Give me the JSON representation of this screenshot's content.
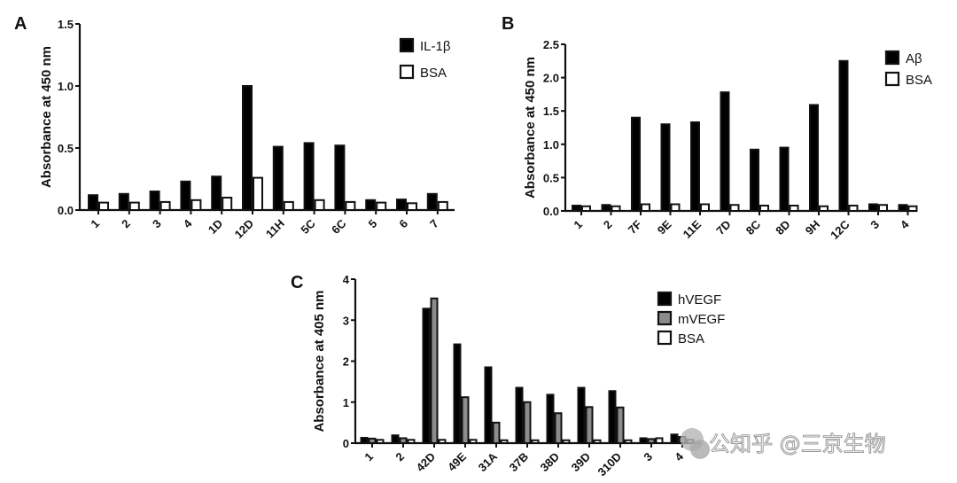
{
  "chart_data": [
    {
      "panel": "A",
      "type": "bar",
      "title": "",
      "xlabel": "",
      "ylabel": "Absorbance at 450 nm",
      "ylim": [
        0,
        1.5
      ],
      "yticks": [
        "0.0",
        "0.5",
        "1.0",
        "1.5"
      ],
      "ytick_values": [
        0,
        0.5,
        1.0,
        1.5
      ],
      "categories": [
        "1",
        "2",
        "3",
        "4",
        "1D",
        "12D",
        "11H",
        "5C",
        "6C",
        "5",
        "6",
        "7"
      ],
      "legend_position": "top-right",
      "series": [
        {
          "name": "IL-1β",
          "fill": "#000000",
          "values": [
            0.12,
            0.13,
            0.15,
            0.23,
            0.27,
            1.0,
            0.51,
            0.54,
            0.52,
            0.08,
            0.085,
            0.13
          ]
        },
        {
          "name": "BSA",
          "fill": "#ffffff",
          "values": [
            0.06,
            0.06,
            0.065,
            0.08,
            0.1,
            0.26,
            0.065,
            0.08,
            0.065,
            0.06,
            0.055,
            0.065
          ]
        }
      ]
    },
    {
      "panel": "B",
      "type": "bar",
      "title": "",
      "xlabel": "",
      "ylabel": "Absorbance at 450 nm",
      "ylim": [
        0,
        2.5
      ],
      "yticks": [
        "0.0",
        "0.5",
        "1.0",
        "1.5",
        "2.0",
        "2.5"
      ],
      "ytick_values": [
        0,
        0.5,
        1.0,
        1.5,
        2.0,
        2.5
      ],
      "categories": [
        "1",
        "2",
        "7F",
        "9E",
        "11E",
        "7D",
        "8C",
        "8D",
        "9H",
        "12C",
        "3",
        "4"
      ],
      "legend_position": "top-right",
      "series": [
        {
          "name": "Aβ",
          "fill": "#000000",
          "values": [
            0.08,
            0.09,
            1.4,
            1.3,
            1.33,
            1.78,
            0.92,
            0.95,
            1.59,
            2.25,
            0.1,
            0.09
          ]
        },
        {
          "name": "BSA",
          "fill": "#ffffff",
          "values": [
            0.07,
            0.07,
            0.1,
            0.1,
            0.1,
            0.09,
            0.08,
            0.08,
            0.07,
            0.08,
            0.09,
            0.07
          ]
        }
      ]
    },
    {
      "panel": "C",
      "type": "bar",
      "title": "",
      "xlabel": "",
      "ylabel": "Absorbance at 405 nm",
      "ylim": [
        0,
        4
      ],
      "yticks": [
        "0",
        "1",
        "2",
        "3",
        "4"
      ],
      "ytick_values": [
        0,
        1,
        2,
        3,
        4
      ],
      "categories": [
        "1",
        "2",
        "42D",
        "49E",
        "31A",
        "37B",
        "38D",
        "39D",
        "310D",
        "3",
        "4"
      ],
      "legend_position": "right",
      "series": [
        {
          "name": "hVEGF",
          "fill": "#000000",
          "values": [
            0.13,
            0.19,
            3.28,
            2.41,
            1.85,
            1.35,
            1.18,
            1.35,
            1.27,
            0.12,
            0.21
          ]
        },
        {
          "name": "mVEGF",
          "fill": "#8c8c8c",
          "values": [
            0.11,
            0.12,
            3.53,
            1.12,
            0.5,
            1.0,
            0.73,
            0.88,
            0.87,
            0.1,
            0.15
          ]
        },
        {
          "name": "BSA",
          "fill": "#ffffff",
          "values": [
            0.08,
            0.08,
            0.08,
            0.08,
            0.07,
            0.07,
            0.07,
            0.07,
            0.07,
            0.12,
            0.08
          ]
        }
      ]
    }
  ],
  "watermark": "公知乎 @三京生物"
}
